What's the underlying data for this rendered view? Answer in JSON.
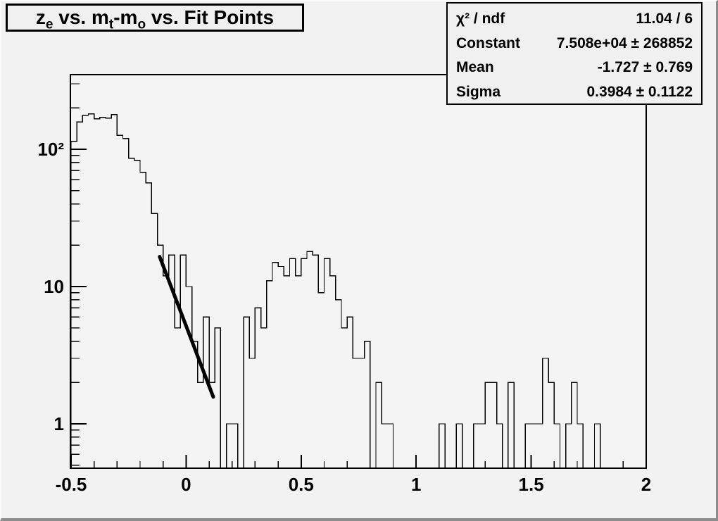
{
  "title": {
    "segments": [
      {
        "text": "z"
      },
      {
        "sub": "e"
      },
      {
        "text": " vs. m"
      },
      {
        "sub": "t"
      },
      {
        "text": "-m"
      },
      {
        "sub": "o"
      },
      {
        "text": " vs. Fit Points"
      }
    ],
    "plain": "z_e vs. m_t-m_o vs. Fit Points"
  },
  "stats": {
    "rows": [
      {
        "label": "χ² / ndf",
        "value": "11.04 / 6"
      },
      {
        "label": "Constant",
        "value": "7.508e+04 ± 268852"
      },
      {
        "label": "Mean",
        "value": "-1.727 ± 0.769"
      },
      {
        "label": "Sigma",
        "value": "0.3984 ± 0.1122"
      }
    ]
  },
  "chart_data": {
    "type": "bar",
    "subtype": "step-histogram",
    "title": "z_e vs. m_t-m_o vs. Fit Points",
    "xlabel": "",
    "ylabel": "",
    "log_y": true,
    "grid": false,
    "xlim": [
      -0.5,
      2.0
    ],
    "ylim": [
      0.47,
      350
    ],
    "bin_start": -0.5,
    "bin_width": 0.025,
    "counts": [
      114,
      158,
      177,
      181,
      167,
      171,
      169,
      179,
      126,
      120,
      86,
      83,
      68,
      57,
      34,
      20,
      12,
      17,
      5,
      17,
      10,
      4,
      2,
      6,
      2,
      5,
      0,
      1,
      1,
      0,
      6,
      3,
      7,
      5,
      11,
      15,
      14,
      12,
      16,
      12,
      16,
      18,
      17,
      9,
      16,
      12,
      8,
      5,
      6,
      3,
      3,
      4,
      0,
      2,
      1,
      1,
      0,
      0,
      0,
      0,
      0,
      0,
      0,
      0,
      1,
      0,
      0,
      1,
      0,
      0,
      1,
      1,
      2,
      2,
      1,
      0,
      2,
      0,
      0,
      1,
      1,
      1,
      3,
      2,
      1,
      0,
      1,
      2,
      1,
      0,
      0,
      1,
      0,
      0,
      0,
      0,
      0,
      0,
      0,
      0
    ],
    "x_ticks": [
      {
        "v": -0.5,
        "label": "-0.5"
      },
      {
        "v": 0,
        "label": "0"
      },
      {
        "v": 0.5,
        "label": "0.5"
      },
      {
        "v": 1,
        "label": "1"
      },
      {
        "v": 1.5,
        "label": "1.5"
      },
      {
        "v": 2,
        "label": "2"
      }
    ],
    "x_minor_step": 0.1,
    "y_ticks": [
      {
        "v": 1,
        "label": "1"
      },
      {
        "v": 10,
        "label": "10"
      },
      {
        "v": 100,
        "label": "10²"
      }
    ],
    "fit": {
      "name": "gaus",
      "chi2_ndf": "11.04 / 6",
      "constant": 75080,
      "constant_err": 268852,
      "mean": -1.727,
      "mean_err": 0.769,
      "sigma": 0.3984,
      "sigma_err": 0.1122,
      "line_x1": -0.115,
      "line_y1": 16.5,
      "line_x2": 0.118,
      "line_y2": 1.57
    },
    "colors": {
      "line": "#000000",
      "fit_line": "#000000",
      "canvas_bg": "#f2f2f2",
      "frame_bg": "#f4f4f4",
      "box_bg": "#f0f0f0",
      "border_dark": "#8d8d8d"
    }
  }
}
